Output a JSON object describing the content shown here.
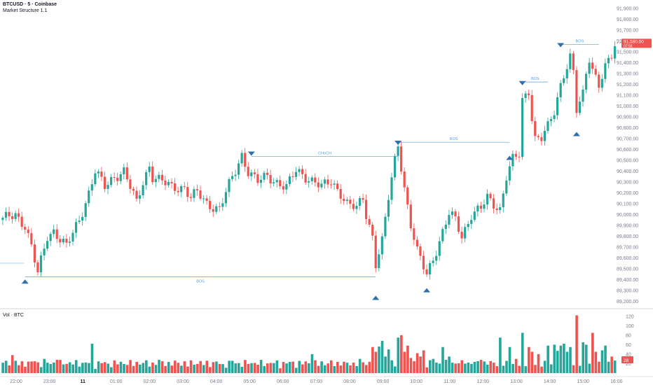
{
  "header": {
    "symbol": "BTCUSD · 5 · Coinbase",
    "indicator": "Market Structure 1.1"
  },
  "volume_pane": {
    "title": "Vol · BTC"
  },
  "colors": {
    "up": "#26a69a",
    "down": "#ef5350",
    "structure": "#5b9bd5",
    "axis_text": "#787b86"
  },
  "price_tag": {
    "value": "91,580.00",
    "sub": "07:56"
  },
  "volume_tag": {
    "value": "28"
  },
  "chart_data": [
    {
      "type": "candlestick",
      "title": "BTCUSD · 5 · Coinbase",
      "subtitle": "Market Structure 1.1",
      "x_ticks": [
        "22:00",
        "23:00",
        "11",
        "01:00",
        "02:00",
        "03:00",
        "04:00",
        "05:00",
        "06:00",
        "07:00",
        "08:00",
        "09:00",
        "10:00",
        "11:00",
        "12:00",
        "13:00",
        "14:00",
        "15:00",
        "16:00"
      ],
      "y_ticks": [
        89200,
        89300,
        89400,
        89500,
        89600,
        89700,
        89800,
        89900,
        90000,
        90100,
        90200,
        90300,
        90400,
        90500,
        90600,
        90700,
        90800,
        90900,
        91000,
        91100,
        91200,
        91300,
        91400,
        91500,
        91600,
        91700,
        91800,
        91900
      ],
      "ylim": [
        89150,
        91950
      ],
      "path": [
        [
          0,
          89950
        ],
        [
          4,
          90000
        ],
        [
          7,
          89900
        ],
        [
          9,
          89700
        ],
        [
          11,
          89450
        ],
        [
          14,
          89800
        ],
        [
          16,
          89850
        ],
        [
          20,
          89700
        ],
        [
          24,
          89950
        ],
        [
          27,
          90200
        ],
        [
          29,
          90400
        ],
        [
          31,
          90300
        ],
        [
          32,
          90250
        ],
        [
          35,
          90350
        ],
        [
          38,
          90400
        ],
        [
          42,
          90100
        ],
        [
          44,
          90300
        ],
        [
          46,
          90450
        ],
        [
          47,
          90350
        ],
        [
          50,
          90300
        ],
        [
          53,
          90250
        ],
        [
          57,
          90250
        ],
        [
          59,
          90150
        ],
        [
          61,
          90200
        ],
        [
          64,
          90100
        ],
        [
          68,
          90050
        ],
        [
          70,
          90200
        ],
        [
          73,
          90400
        ],
        [
          75,
          90550
        ],
        [
          77,
          90400
        ],
        [
          80,
          90300
        ],
        [
          83,
          90350
        ],
        [
          86,
          90300
        ],
        [
          89,
          90250
        ],
        [
          92,
          90400
        ],
        [
          95,
          90350
        ],
        [
          98,
          90300
        ],
        [
          100,
          90250
        ],
        [
          103,
          90300
        ],
        [
          106,
          90200
        ],
        [
          108,
          90100
        ],
        [
          111,
          90050
        ],
        [
          113,
          90150
        ],
        [
          114,
          90000
        ],
        [
          116,
          89800
        ],
        [
          117,
          89550
        ],
        [
          119,
          89750
        ],
        [
          121,
          90150
        ],
        [
          123,
          90500
        ],
        [
          124,
          90650
        ],
        [
          126,
          90250
        ],
        [
          128,
          89900
        ],
        [
          130,
          89650
        ],
        [
          133,
          89450
        ],
        [
          135,
          89600
        ],
        [
          137,
          89750
        ],
        [
          140,
          90000
        ],
        [
          142,
          89950
        ],
        [
          144,
          89800
        ],
        [
          147,
          90000
        ],
        [
          150,
          90050
        ],
        [
          152,
          90150
        ],
        [
          154,
          90100
        ],
        [
          156,
          90050
        ],
        [
          158,
          90350
        ],
        [
          160,
          90500
        ],
        [
          162,
          90550
        ],
        [
          163,
          91050
        ],
        [
          165,
          91150
        ],
        [
          166,
          90900
        ],
        [
          167,
          90700
        ],
        [
          169,
          90700
        ],
        [
          171,
          90800
        ],
        [
          173,
          90950
        ],
        [
          175,
          91200
        ],
        [
          176,
          91300
        ],
        [
          178,
          91450
        ],
        [
          179,
          91300
        ],
        [
          180,
          90950
        ],
        [
          182,
          91100
        ],
        [
          183,
          91300
        ],
        [
          184,
          91450
        ],
        [
          185,
          91350
        ],
        [
          187,
          91200
        ],
        [
          189,
          91350
        ],
        [
          191,
          91450
        ],
        [
          192,
          91550
        ]
      ],
      "volume_scale_ticks": [
        20,
        40,
        60,
        80,
        100,
        120
      ],
      "volume_ylim": [
        0,
        130
      ],
      "volume_spikes": [
        [
          0,
          22
        ],
        [
          3,
          38
        ],
        [
          10,
          25
        ],
        [
          13,
          30
        ],
        [
          17,
          28
        ],
        [
          28,
          62
        ],
        [
          33,
          20
        ],
        [
          49,
          28
        ],
        [
          69,
          19
        ],
        [
          72,
          26
        ],
        [
          97,
          40
        ],
        [
          108,
          22
        ],
        [
          112,
          30
        ],
        [
          116,
          55
        ],
        [
          117,
          45
        ],
        [
          118,
          56
        ],
        [
          119,
          68
        ],
        [
          120,
          35
        ],
        [
          121,
          50
        ],
        [
          124,
          75
        ],
        [
          125,
          80
        ],
        [
          126,
          45
        ],
        [
          127,
          58
        ],
        [
          128,
          32
        ],
        [
          130,
          42
        ],
        [
          131,
          35
        ],
        [
          132,
          48
        ],
        [
          135,
          30
        ],
        [
          138,
          55
        ],
        [
          140,
          35
        ],
        [
          145,
          20
        ],
        [
          150,
          28
        ],
        [
          156,
          75
        ],
        [
          159,
          55
        ],
        [
          161,
          30
        ],
        [
          163,
          85
        ],
        [
          165,
          55
        ],
        [
          166,
          45
        ],
        [
          168,
          40
        ],
        [
          171,
          58
        ],
        [
          173,
          60
        ],
        [
          174,
          47
        ],
        [
          175,
          58
        ],
        [
          176,
          62
        ],
        [
          177,
          45
        ],
        [
          178,
          55
        ],
        [
          180,
          122
        ],
        [
          182,
          65
        ],
        [
          183,
          60
        ],
        [
          185,
          85
        ],
        [
          186,
          45
        ],
        [
          188,
          48
        ],
        [
          189,
          58
        ],
        [
          191,
          35
        ]
      ],
      "structure_labels": {
        "bos_low": "BOS",
        "choch": "CHoCH",
        "bos_1": "BOS",
        "bos_2": "BOS",
        "bos_3": "BOS"
      },
      "structure_lines": [
        {
          "name": "bos_low",
          "label": "BOS",
          "price": 89425,
          "from_bar": 7,
          "to_bar": 117
        },
        {
          "name": "choch",
          "label": "CHoCH",
          "price": 90535,
          "from_bar": 78,
          "to_bar": 124
        },
        {
          "name": "bos_1",
          "label": "BOS",
          "price": 90665,
          "from_bar": 124,
          "to_bar": 159
        },
        {
          "name": "bos_2",
          "label": "BOS",
          "price": 91220,
          "from_bar": 163,
          "to_bar": 171
        },
        {
          "name": "bos_3",
          "label": "BOS",
          "price": 91565,
          "from_bar": 175,
          "to_bar": 187
        }
      ],
      "markers": [
        {
          "kind": "up",
          "bar": 7,
          "price": 89400
        },
        {
          "kind": "down",
          "bar": 78,
          "price": 90540
        },
        {
          "kind": "up",
          "bar": 117,
          "price": 89250
        },
        {
          "kind": "down",
          "bar": 124,
          "price": 90640
        },
        {
          "kind": "up",
          "bar": 133,
          "price": 89320
        },
        {
          "kind": "up",
          "bar": 159,
          "price": 90540
        },
        {
          "kind": "down",
          "bar": 163,
          "price": 91190
        },
        {
          "kind": "down",
          "bar": 175,
          "price": 91540
        },
        {
          "kind": "up",
          "bar": 180,
          "price": 90760
        }
      ]
    }
  ]
}
